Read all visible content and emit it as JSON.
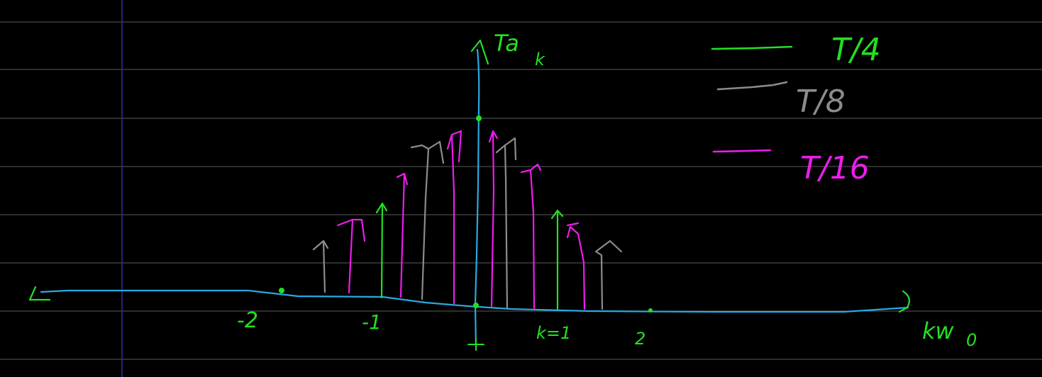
{
  "colors": {
    "background": "#000000",
    "rule_line": "#5c5c5c",
    "margin_line": "#3a2a9a",
    "axis": "#29a9e0",
    "green": "#22e022",
    "gray": "#8c8c8c",
    "magenta": "#ee1cee"
  },
  "axis_labels": {
    "y": "Ta",
    "y_sub": "k",
    "x": "kw",
    "x_sub": "0"
  },
  "tick_labels": {
    "neg2": "-2",
    "neg1": "-1",
    "k1": "k=1",
    "pos2": "2"
  },
  "legend": [
    {
      "label": "T/4",
      "color": "green"
    },
    {
      "label": "T/8",
      "color": "gray"
    },
    {
      "label": "T/16",
      "color": "magenta"
    }
  ]
}
